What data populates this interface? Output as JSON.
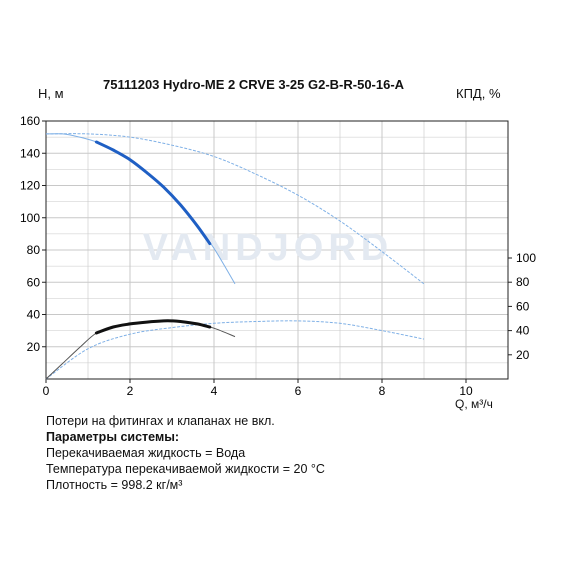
{
  "header": {
    "title": "75111203 Hydro-ME 2 CRVE 3-25 G2-B-R-50-16-A",
    "y_left_label": "H, м",
    "y_right_label": "КПД, %",
    "x_label": "Q, м³/ч"
  },
  "watermark": "VANDJORD",
  "notes": {
    "line1": "Потери на фитингах и клапанах не вкл.",
    "params_title": "Параметры системы:",
    "liquid": "Перекачиваемая жидкость = Вода",
    "temperature": "Температура перекачиваемой жидкости = 20 °C",
    "density": "Плотность = 998.2 кг/м³"
  },
  "chart_data": {
    "type": "line",
    "xlim": [
      0,
      11
    ],
    "ylim_left": [
      0,
      160
    ],
    "ylim_right_efficiency": [
      0,
      100
    ],
    "x_ticks": [
      0,
      2,
      4,
      6,
      8,
      10
    ],
    "y_left_ticks": [
      20,
      40,
      60,
      80,
      100,
      120,
      140,
      160
    ],
    "y_right_ticks": [
      20,
      40,
      60,
      80,
      100
    ],
    "grid": true,
    "colors": {
      "head": "#1f5fc4",
      "efficiency": "#111111",
      "max_curve": "#7fb0e6",
      "grid": "#c8c8c8"
    },
    "series": [
      {
        "role": "head",
        "axis": "left",
        "style": "thick",
        "x": [
          1.2,
          1.6,
          2.0,
          2.4,
          2.8,
          3.2,
          3.6,
          3.9
        ],
        "y": [
          147,
          142,
          136,
          128,
          119,
          108,
          95,
          84
        ]
      },
      {
        "role": "head-range",
        "axis": "left",
        "style": "thin",
        "x": [
          0,
          0.4,
          0.8,
          1.2,
          1.6,
          2.0,
          2.4,
          2.8,
          3.2,
          3.6,
          4.0,
          4.5
        ],
        "y": [
          152,
          152,
          150,
          147,
          142,
          136,
          128,
          119,
          108,
          95,
          81,
          59
        ]
      },
      {
        "role": "efficiency",
        "axis": "right",
        "style": "thick",
        "x": [
          1.2,
          1.6,
          2.0,
          2.4,
          2.8,
          3.0,
          3.2,
          3.6,
          3.9
        ],
        "y": [
          38,
          43,
          45.5,
          47,
          48,
          48,
          47.5,
          45.5,
          43
        ]
      },
      {
        "role": "efficiency-range",
        "axis": "right",
        "style": "thin",
        "x": [
          0,
          0.4,
          0.8,
          1.2,
          1.6,
          2.0,
          2.4,
          2.8,
          3.2,
          3.6,
          4.0,
          4.5
        ],
        "y": [
          0,
          13,
          26,
          38,
          43,
          45.5,
          47,
          48,
          47.5,
          45.5,
          42,
          35
        ]
      },
      {
        "role": "head-max",
        "axis": "left",
        "style": "dashed",
        "x": [
          0,
          1,
          2,
          3,
          4,
          5,
          6,
          7,
          8,
          9
        ],
        "y": [
          152,
          152,
          150,
          145,
          138,
          127,
          114,
          98,
          79,
          59
        ]
      },
      {
        "role": "efficiency-max",
        "axis": "right",
        "style": "dashed",
        "x": [
          0,
          1,
          2,
          3,
          4,
          5,
          6,
          7,
          8,
          9
        ],
        "y": [
          0,
          25,
          37,
          42.5,
          46,
          47.5,
          48,
          46,
          40,
          33
        ]
      }
    ]
  }
}
